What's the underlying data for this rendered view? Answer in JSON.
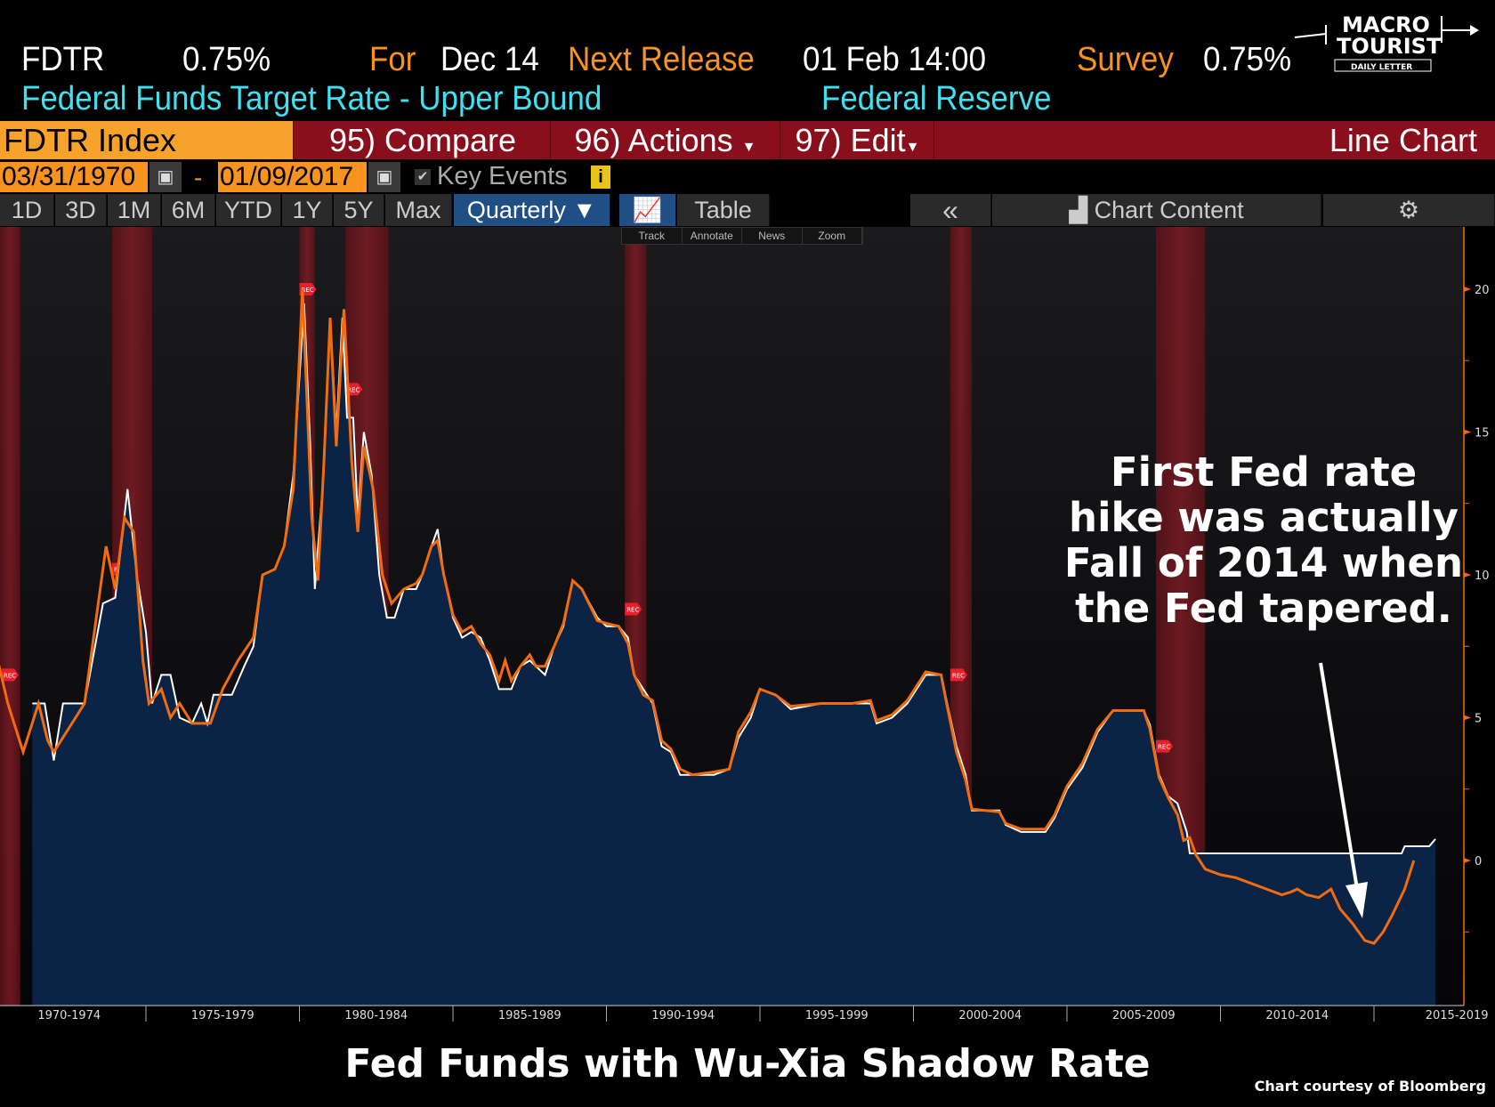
{
  "header": {
    "ticker": "FDTR",
    "value": "0.75%",
    "for_label": "For",
    "for_value": "Dec 14",
    "next_label": "Next Release",
    "next_value": "01 Feb 14:00",
    "survey_label": "Survey",
    "survey_value": "0.75%",
    "name": "Federal Funds Target Rate - Upper Bound",
    "source": "Federal Reserve"
  },
  "logo": {
    "line1": "MACRO",
    "line2": "TOURIST",
    "line3": "DAILY LETTER"
  },
  "menu": {
    "security": "FDTR Index",
    "compare": "95) Compare",
    "actions": "96) Actions",
    "edit": "97) Edit",
    "chart_type": "Line Chart"
  },
  "dates": {
    "start": "03/31/1970",
    "sep": "-",
    "end": "01/09/2017",
    "key_events": "Key Events"
  },
  "tabs": [
    "1D",
    "3D",
    "1M",
    "6M",
    "YTD",
    "1Y",
    "5Y",
    "Max"
  ],
  "period": "Quarterly ▼",
  "table_label": "Table",
  "collapse": "«",
  "chart_content": "Chart Content",
  "mini_toolbar": [
    "Track",
    "Annotate",
    "News",
    "Zoom"
  ],
  "annotation": {
    "lines": [
      "First Fed rate",
      "hike was actually",
      "Fall of 2014 when",
      "the Fed tapered."
    ]
  },
  "footer": {
    "title": "Fed Funds with Wu-Xia Shadow Rate",
    "credit": "Chart courtesy of Bloomberg"
  },
  "colors": {
    "fdtr": "#ffffff",
    "shadow": "#f26b0f",
    "fill": "#0b2445",
    "recession": "#7a1b22"
  },
  "chart_data": {
    "type": "line",
    "ylim": [
      -5,
      21.5
    ],
    "xlim": [
      1970,
      2020
    ],
    "yticks": [
      0,
      5,
      10,
      15,
      20
    ],
    "xtick_labels": [
      "1970-1974",
      "1975-1979",
      "1980-1984",
      "1985-1989",
      "1990-1994",
      "1995-1999",
      "2000-2004",
      "2005-2009",
      "2010-2014",
      "2015-2019"
    ],
    "recession_label": "REC",
    "recessions": [
      [
        1969.9,
        1970.9
      ],
      [
        1973.9,
        1975.2
      ],
      [
        1980.0,
        1980.5
      ],
      [
        1981.5,
        1982.9
      ],
      [
        1990.6,
        1991.3
      ],
      [
        2001.2,
        2001.9
      ],
      [
        2007.9,
        2009.5
      ]
    ],
    "series": [
      {
        "name": "FDTR",
        "values": [
          [
            1971.3,
            5.5
          ],
          [
            1971.7,
            5.5
          ],
          [
            1972.0,
            3.5
          ],
          [
            1972.3,
            5.5
          ],
          [
            1973.0,
            5.5
          ],
          [
            1973.6,
            9
          ],
          [
            1974.0,
            9.2
          ],
          [
            1974.4,
            13
          ],
          [
            1974.7,
            10
          ],
          [
            1975.0,
            8
          ],
          [
            1975.2,
            5.5
          ],
          [
            1975.5,
            6.5
          ],
          [
            1975.8,
            6.5
          ],
          [
            1976.1,
            5
          ],
          [
            1976.5,
            4.8
          ],
          [
            1976.8,
            5.5
          ],
          [
            1977.0,
            4.8
          ],
          [
            1977.2,
            5.8
          ],
          [
            1977.8,
            5.8
          ],
          [
            1978.2,
            6.8
          ],
          [
            1978.5,
            7.5
          ],
          [
            1978.8,
            10
          ],
          [
            1979.2,
            10.2
          ],
          [
            1979.5,
            11
          ],
          [
            1979.8,
            13.5
          ],
          [
            1980.15,
            19.5
          ],
          [
            1980.35,
            14.5
          ],
          [
            1980.5,
            9.5
          ],
          [
            1980.75,
            13
          ],
          [
            1981.0,
            19
          ],
          [
            1981.2,
            15
          ],
          [
            1981.4,
            19
          ],
          [
            1981.55,
            15.5
          ],
          [
            1981.75,
            15.5
          ],
          [
            1981.9,
            12
          ],
          [
            1982.1,
            15
          ],
          [
            1982.35,
            13.5
          ],
          [
            1982.6,
            10
          ],
          [
            1982.85,
            8.5
          ],
          [
            1983.1,
            8.5
          ],
          [
            1983.4,
            9.5
          ],
          [
            1983.8,
            9.5
          ],
          [
            1984.0,
            10
          ],
          [
            1984.3,
            11
          ],
          [
            1984.5,
            11.6
          ],
          [
            1984.7,
            10
          ],
          [
            1985.0,
            8.5
          ],
          [
            1985.3,
            7.8
          ],
          [
            1985.6,
            8
          ],
          [
            1985.9,
            7.8
          ],
          [
            1986.2,
            7
          ],
          [
            1986.5,
            6
          ],
          [
            1986.9,
            6
          ],
          [
            1987.2,
            6.8
          ],
          [
            1987.5,
            7
          ],
          [
            1987.7,
            6.8
          ],
          [
            1988.0,
            6.5
          ],
          [
            1988.3,
            7.5
          ],
          [
            1988.6,
            8.2
          ],
          [
            1988.9,
            9.8
          ],
          [
            1989.2,
            9.5
          ],
          [
            1989.7,
            8.5
          ],
          [
            1990.0,
            8.2
          ],
          [
            1990.4,
            8.2
          ],
          [
            1990.7,
            7.8
          ],
          [
            1990.9,
            6.5
          ],
          [
            1991.2,
            6
          ],
          [
            1991.5,
            5.5
          ],
          [
            1991.8,
            4
          ],
          [
            1992.1,
            3.8
          ],
          [
            1992.4,
            3
          ],
          [
            1992.8,
            3
          ],
          [
            1993.5,
            3
          ],
          [
            1994.0,
            3.2
          ],
          [
            1994.3,
            4.3
          ],
          [
            1994.7,
            5
          ],
          [
            1995.0,
            6
          ],
          [
            1995.5,
            5.8
          ],
          [
            1996.0,
            5.3
          ],
          [
            1997.0,
            5.5
          ],
          [
            1998.0,
            5.5
          ],
          [
            1998.6,
            5.5
          ],
          [
            1998.8,
            4.8
          ],
          [
            1999.3,
            5
          ],
          [
            1999.8,
            5.5
          ],
          [
            2000.4,
            6.5
          ],
          [
            2000.9,
            6.5
          ],
          [
            2001.1,
            5.5
          ],
          [
            2001.4,
            4
          ],
          [
            2001.7,
            3
          ],
          [
            2001.9,
            1.75
          ],
          [
            2002.8,
            1.75
          ],
          [
            2003.0,
            1.25
          ],
          [
            2003.5,
            1
          ],
          [
            2004.3,
            1
          ],
          [
            2004.6,
            1.5
          ],
          [
            2005.0,
            2.5
          ],
          [
            2005.5,
            3.25
          ],
          [
            2006.0,
            4.5
          ],
          [
            2006.5,
            5.25
          ],
          [
            2007.5,
            5.25
          ],
          [
            2007.7,
            4.75
          ],
          [
            2008.0,
            3
          ],
          [
            2008.3,
            2.25
          ],
          [
            2008.6,
            2
          ],
          [
            2008.9,
            1
          ],
          [
            2009.0,
            0.25
          ],
          [
            2015.9,
            0.25
          ],
          [
            2016.0,
            0.5
          ],
          [
            2016.8,
            0.5
          ],
          [
            2017.0,
            0.75
          ]
        ]
      },
      {
        "name": "Wu-Xia Shadow Rate",
        "values": [
          [
            1970.0,
            7.8
          ],
          [
            1970.5,
            5.5
          ],
          [
            1971.0,
            3.8
          ],
          [
            1971.5,
            5.5
          ],
          [
            1971.8,
            4.2
          ],
          [
            1972.0,
            3.8
          ],
          [
            1973.0,
            5.5
          ],
          [
            1973.7,
            11
          ],
          [
            1974.0,
            9.5
          ],
          [
            1974.3,
            12
          ],
          [
            1974.6,
            11.5
          ],
          [
            1974.9,
            7
          ],
          [
            1975.1,
            5.5
          ],
          [
            1975.5,
            6
          ],
          [
            1975.8,
            5
          ],
          [
            1976.1,
            5.5
          ],
          [
            1976.5,
            4.8
          ],
          [
            1977.1,
            4.8
          ],
          [
            1977.5,
            6
          ],
          [
            1978.0,
            7
          ],
          [
            1978.5,
            7.8
          ],
          [
            1978.8,
            10
          ],
          [
            1979.2,
            10.2
          ],
          [
            1979.5,
            11
          ],
          [
            1979.8,
            13
          ],
          [
            1980.1,
            20
          ],
          [
            1980.4,
            12
          ],
          [
            1980.6,
            9.8
          ],
          [
            1980.8,
            14
          ],
          [
            1981.0,
            19
          ],
          [
            1981.2,
            14.5
          ],
          [
            1981.45,
            19.3
          ],
          [
            1981.7,
            14
          ],
          [
            1981.9,
            11.5
          ],
          [
            1982.1,
            14.5
          ],
          [
            1982.4,
            13
          ],
          [
            1982.7,
            10
          ],
          [
            1983.0,
            9
          ],
          [
            1983.4,
            9.5
          ],
          [
            1983.8,
            9.7
          ],
          [
            1984.0,
            10
          ],
          [
            1984.3,
            11
          ],
          [
            1984.5,
            11.2
          ],
          [
            1984.7,
            10
          ],
          [
            1985.0,
            8.6
          ],
          [
            1985.3,
            8
          ],
          [
            1985.6,
            8.2
          ],
          [
            1985.9,
            7.6
          ],
          [
            1986.2,
            7.2
          ],
          [
            1986.5,
            6.3
          ],
          [
            1986.7,
            7
          ],
          [
            1986.9,
            6.3
          ],
          [
            1987.2,
            6.8
          ],
          [
            1987.5,
            7.2
          ],
          [
            1987.7,
            6.8
          ],
          [
            1988.0,
            6.8
          ],
          [
            1988.3,
            7.5
          ],
          [
            1988.6,
            8.3
          ],
          [
            1988.9,
            9.8
          ],
          [
            1989.2,
            9.5
          ],
          [
            1989.7,
            8.4
          ],
          [
            1990.0,
            8.3
          ],
          [
            1990.4,
            8.2
          ],
          [
            1990.7,
            7.6
          ],
          [
            1990.9,
            6.5
          ],
          [
            1991.2,
            5.8
          ],
          [
            1991.5,
            5.6
          ],
          [
            1991.8,
            4.2
          ],
          [
            1992.1,
            3.9
          ],
          [
            1992.4,
            3.2
          ],
          [
            1992.8,
            3
          ],
          [
            1993.5,
            3.1
          ],
          [
            1994.0,
            3.2
          ],
          [
            1994.3,
            4.5
          ],
          [
            1994.7,
            5.2
          ],
          [
            1995.0,
            6
          ],
          [
            1995.5,
            5.8
          ],
          [
            1996.0,
            5.4
          ],
          [
            1997.0,
            5.5
          ],
          [
            1998.0,
            5.5
          ],
          [
            1998.6,
            5.6
          ],
          [
            1998.8,
            4.9
          ],
          [
            1999.3,
            5.1
          ],
          [
            1999.8,
            5.6
          ],
          [
            2000.4,
            6.6
          ],
          [
            2000.9,
            6.5
          ],
          [
            2001.1,
            5.4
          ],
          [
            2001.4,
            3.8
          ],
          [
            2001.7,
            2.8
          ],
          [
            2001.9,
            1.8
          ],
          [
            2002.8,
            1.7
          ],
          [
            2003.0,
            1.3
          ],
          [
            2003.5,
            1.1
          ],
          [
            2004.3,
            1.1
          ],
          [
            2004.6,
            1.6
          ],
          [
            2005.0,
            2.6
          ],
          [
            2005.5,
            3.4
          ],
          [
            2006.0,
            4.6
          ],
          [
            2006.5,
            5.25
          ],
          [
            2007.5,
            5.25
          ],
          [
            2007.7,
            4.6
          ],
          [
            2008.0,
            2.9
          ],
          [
            2008.3,
            2.2
          ],
          [
            2008.6,
            1.6
          ],
          [
            2008.8,
            0.7
          ],
          [
            2009.0,
            0.8
          ],
          [
            2009.2,
            0.2
          ],
          [
            2009.5,
            -0.3
          ],
          [
            2010.0,
            -0.5
          ],
          [
            2010.5,
            -0.6
          ],
          [
            2011.0,
            -0.8
          ],
          [
            2011.5,
            -1.0
          ],
          [
            2012.0,
            -1.2
          ],
          [
            2012.3,
            -1.1
          ],
          [
            2012.5,
            -1.0
          ],
          [
            2012.8,
            -1.2
          ],
          [
            2013.2,
            -1.3
          ],
          [
            2013.6,
            -1.0
          ],
          [
            2013.9,
            -1.7
          ],
          [
            2014.3,
            -2.2
          ],
          [
            2014.7,
            -2.8
          ],
          [
            2015.0,
            -2.9
          ],
          [
            2015.3,
            -2.5
          ],
          [
            2015.6,
            -1.9
          ],
          [
            2016.0,
            -1.0
          ],
          [
            2016.3,
            0
          ]
        ]
      }
    ]
  }
}
